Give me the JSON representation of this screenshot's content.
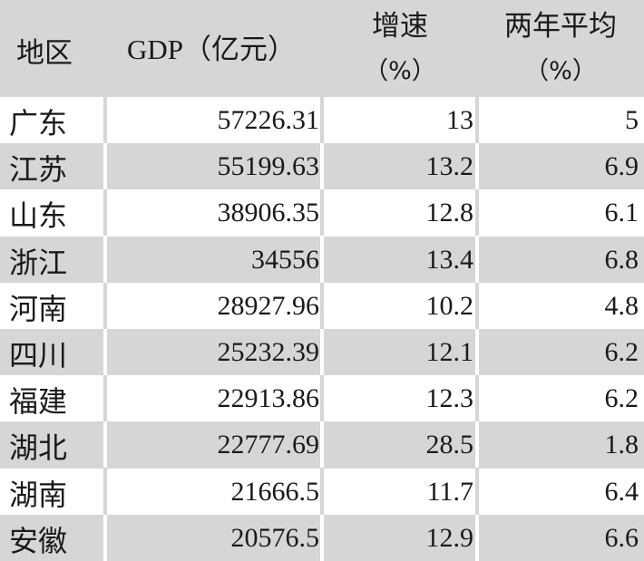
{
  "header": {
    "region": "地区",
    "gdp": "GDP（亿元）",
    "growth": "增速",
    "growth_unit": "（%）",
    "avg": "两年平均",
    "avg_unit": "（%）"
  },
  "rows": [
    {
      "region": "广东",
      "gdp": "57226.31",
      "growth": "13",
      "avg": "5"
    },
    {
      "region": "江苏",
      "gdp": "55199.63",
      "growth": "13.2",
      "avg": "6.9"
    },
    {
      "region": "山东",
      "gdp": "38906.35",
      "growth": "12.8",
      "avg": "6.1"
    },
    {
      "region": "浙江",
      "gdp": "34556",
      "growth": "13.4",
      "avg": "6.8"
    },
    {
      "region": "河南",
      "gdp": "28927.96",
      "growth": "10.2",
      "avg": "4.8"
    },
    {
      "region": "四川",
      "gdp": "25232.39",
      "growth": "12.1",
      "avg": "6.2"
    },
    {
      "region": "福建",
      "gdp": "22913.86",
      "growth": "12.3",
      "avg": "6.2"
    },
    {
      "region": "湖北",
      "gdp": "22777.69",
      "growth": "28.5",
      "avg": "1.8"
    },
    {
      "region": "湖南",
      "gdp": "21666.5",
      "growth": "11.7",
      "avg": "6.4"
    },
    {
      "region": "安徽",
      "gdp": "20576.5",
      "growth": "12.9",
      "avg": "6.6"
    }
  ]
}
